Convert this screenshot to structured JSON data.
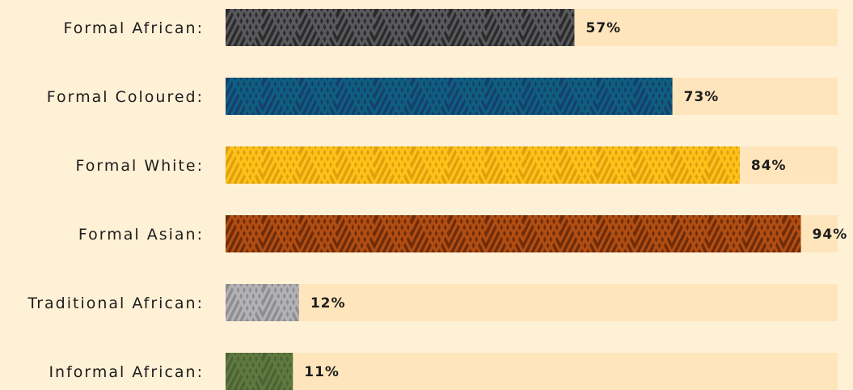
{
  "chart_data": {
    "type": "bar",
    "orientation": "horizontal",
    "categories": [
      "Formal African:",
      "Formal Coloured:",
      "Formal White:",
      "Formal Asian:",
      "Traditional African:",
      "Informal African:"
    ],
    "values": [
      57,
      73,
      84,
      94,
      12,
      11
    ],
    "value_labels": [
      "57%",
      "73%",
      "84%",
      "94%",
      "12%",
      "11%"
    ],
    "xlim": [
      0,
      100
    ],
    "grid": false,
    "legend": "none",
    "colors": {
      "background": "#fff1d6",
      "track": "#ffe5bc",
      "text": "#1c1c1c",
      "bars": [
        {
          "base": "#2b2b2b",
          "stripe": "#5a5a5e"
        },
        {
          "base": "#15406e",
          "stripe": "#0f5f80"
        },
        {
          "base": "#dea10d",
          "stripe": "#ffc21a"
        },
        {
          "base": "#6e2c0a",
          "stripe": "#b24e12"
        },
        {
          "base": "#8e8e91",
          "stripe": "#b3b3b6"
        },
        {
          "base": "#4c6434",
          "stripe": "#5f7a40"
        }
      ]
    },
    "pattern": "diagonal-weave"
  }
}
